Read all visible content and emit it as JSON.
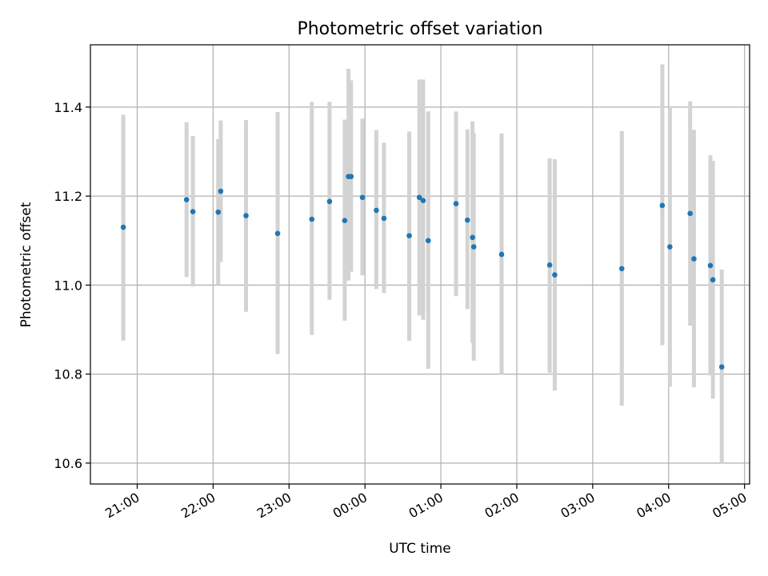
{
  "chart_data": {
    "type": "scatter",
    "title": "Photometric offset variation",
    "xlabel": "UTC time",
    "ylabel": "Photometric offset",
    "x_ticks": [
      "21:00",
      "22:00",
      "23:00",
      "00:00",
      "01:00",
      "02:00",
      "03:00",
      "04:00",
      "05:00"
    ],
    "y_ticks": [
      10.6,
      10.8,
      11.0,
      11.2,
      11.4
    ],
    "xlim": [
      "20:23",
      "05:04"
    ],
    "ylim": [
      10.553,
      11.54
    ],
    "grid": true,
    "colors": {
      "point": "#1f77b4",
      "errorbar": "#d3d3d3",
      "grid": "#b0b0b0"
    },
    "points": [
      {
        "t": "20:49",
        "y": 11.13,
        "low": 10.875,
        "high": 11.383
      },
      {
        "t": "21:39",
        "y": 11.192,
        "low": 11.018,
        "high": 11.366
      },
      {
        "t": "21:44",
        "y": 11.165,
        "low": 10.997,
        "high": 11.335
      },
      {
        "t": "22:04",
        "y": 11.164,
        "low": 11.0,
        "high": 11.328
      },
      {
        "t": "22:06",
        "y": 11.211,
        "low": 11.052,
        "high": 11.37
      },
      {
        "t": "22:26",
        "y": 11.156,
        "low": 10.94,
        "high": 11.371
      },
      {
        "t": "22:51",
        "y": 11.116,
        "low": 10.845,
        "high": 11.389
      },
      {
        "t": "23:18",
        "y": 11.148,
        "low": 10.888,
        "high": 11.412
      },
      {
        "t": "23:32",
        "y": 11.188,
        "low": 10.967,
        "high": 11.412
      },
      {
        "t": "23:44",
        "y": 11.145,
        "low": 10.92,
        "high": 11.372
      },
      {
        "t": "23:47",
        "y": 11.244,
        "low": 11.01,
        "high": 11.486
      },
      {
        "t": "23:49",
        "y": 11.244,
        "low": 11.03,
        "high": 11.46
      },
      {
        "t": "23:58",
        "y": 11.197,
        "low": 11.022,
        "high": 11.374
      },
      {
        "t": "00:09",
        "y": 11.168,
        "low": 10.991,
        "high": 11.348
      },
      {
        "t": "00:15",
        "y": 11.15,
        "low": 10.982,
        "high": 11.32
      },
      {
        "t": "00:35",
        "y": 11.111,
        "low": 10.875,
        "high": 11.345
      },
      {
        "t": "00:43",
        "y": 11.197,
        "low": 10.932,
        "high": 11.462
      },
      {
        "t": "00:46",
        "y": 11.19,
        "low": 10.922,
        "high": 11.462
      },
      {
        "t": "00:50",
        "y": 11.1,
        "low": 10.812,
        "high": 11.39
      },
      {
        "t": "01:12",
        "y": 11.183,
        "low": 10.975,
        "high": 11.39
      },
      {
        "t": "01:21",
        "y": 11.146,
        "low": 10.946,
        "high": 11.35
      },
      {
        "t": "01:25",
        "y": 11.107,
        "low": 10.87,
        "high": 11.368
      },
      {
        "t": "01:26",
        "y": 11.086,
        "low": 10.83,
        "high": 11.342
      },
      {
        "t": "01:48",
        "y": 11.069,
        "low": 10.8,
        "high": 11.341
      },
      {
        "t": "02:26",
        "y": 11.045,
        "low": 10.803,
        "high": 11.285
      },
      {
        "t": "02:30",
        "y": 11.023,
        "low": 10.763,
        "high": 11.283
      },
      {
        "t": "03:23",
        "y": 11.037,
        "low": 10.729,
        "high": 11.346
      },
      {
        "t": "03:55",
        "y": 11.179,
        "low": 10.865,
        "high": 11.496
      },
      {
        "t": "04:01",
        "y": 11.086,
        "low": 10.772,
        "high": 11.4
      },
      {
        "t": "04:17",
        "y": 11.161,
        "low": 10.909,
        "high": 11.413
      },
      {
        "t": "04:20",
        "y": 11.059,
        "low": 10.77,
        "high": 11.349
      },
      {
        "t": "04:33",
        "y": 11.044,
        "low": 10.797,
        "high": 11.292
      },
      {
        "t": "04:35",
        "y": 11.012,
        "low": 10.745,
        "high": 11.279
      },
      {
        "t": "04:42",
        "y": 10.816,
        "low": 10.6,
        "high": 11.035
      }
    ]
  }
}
